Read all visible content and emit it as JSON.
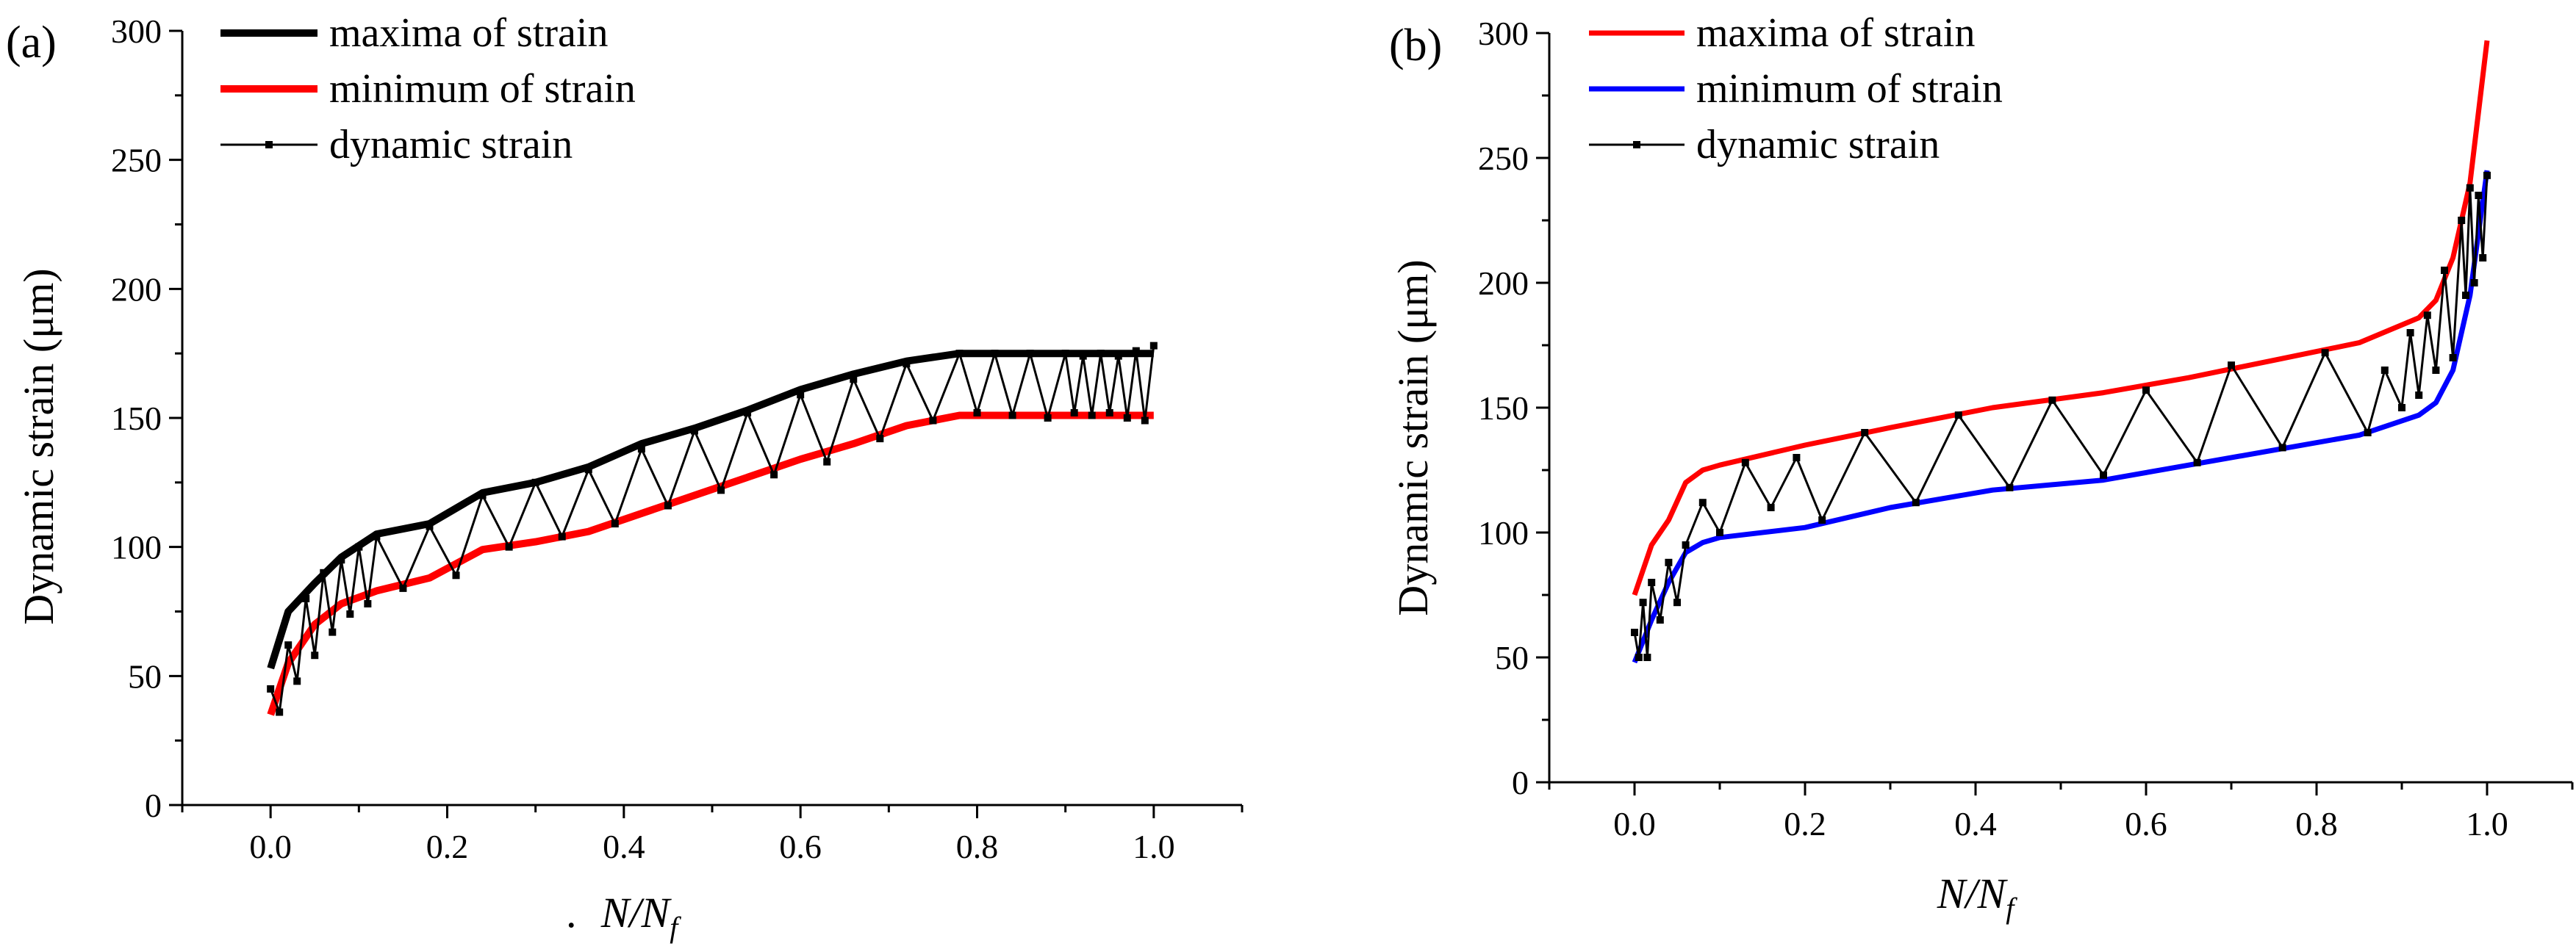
{
  "figure": {
    "note_dot": "."
  },
  "chart_data": [
    {
      "type": "line",
      "panel_label": "(a)",
      "xlabel": {
        "main": "N/N",
        "sub": "f"
      },
      "ylabel": "Dynamic strain (μm)",
      "xlim": [
        -0.1,
        1.1
      ],
      "ylim": [
        0,
        300
      ],
      "xticks": [
        0.0,
        0.2,
        0.4,
        0.6,
        0.8,
        1.0
      ],
      "xtick_labels": [
        "0.0",
        "0.2",
        "0.4",
        "0.6",
        "0.8",
        "1.0"
      ],
      "yticks": [
        0,
        50,
        100,
        150,
        200,
        250,
        300
      ],
      "ytick_labels": [
        "0",
        "50",
        "100",
        "150",
        "200",
        "250",
        "300"
      ],
      "legend_position": "top-left",
      "series": [
        {
          "name": "maxima of strain",
          "color": "#000000",
          "style": "thick-line",
          "x": [
            0.0,
            0.02,
            0.05,
            0.08,
            0.12,
            0.18,
            0.24,
            0.3,
            0.36,
            0.42,
            0.48,
            0.54,
            0.6,
            0.66,
            0.72,
            0.78,
            0.85,
            0.9,
            1.0
          ],
          "y": [
            53,
            75,
            86,
            96,
            105,
            109,
            121,
            125,
            131,
            140,
            146,
            153,
            161,
            167,
            172,
            175,
            175,
            175,
            175
          ]
        },
        {
          "name": "minimum of strain",
          "color": "#ff0000",
          "style": "thick-line",
          "x": [
            0.0,
            0.02,
            0.05,
            0.08,
            0.12,
            0.18,
            0.24,
            0.3,
            0.36,
            0.42,
            0.48,
            0.54,
            0.6,
            0.66,
            0.72,
            0.78,
            0.85,
            0.9,
            1.0
          ],
          "y": [
            35,
            55,
            70,
            78,
            83,
            88,
            99,
            102,
            106,
            113,
            120,
            127,
            134,
            140,
            147,
            151,
            151,
            151,
            151
          ]
        },
        {
          "name": "dynamic strain",
          "color": "#000000",
          "style": "thin-line-square-markers",
          "x": [
            0.0,
            0.01,
            0.02,
            0.03,
            0.04,
            0.05,
            0.06,
            0.07,
            0.08,
            0.09,
            0.1,
            0.11,
            0.12,
            0.15,
            0.18,
            0.21,
            0.24,
            0.27,
            0.3,
            0.33,
            0.36,
            0.39,
            0.42,
            0.45,
            0.48,
            0.51,
            0.54,
            0.57,
            0.6,
            0.63,
            0.66,
            0.69,
            0.72,
            0.75,
            0.78,
            0.8,
            0.82,
            0.84,
            0.86,
            0.88,
            0.9,
            0.91,
            0.92,
            0.93,
            0.94,
            0.95,
            0.96,
            0.97,
            0.98,
            0.99,
            1.0
          ],
          "y": [
            45,
            36,
            62,
            48,
            80,
            58,
            90,
            67,
            95,
            74,
            100,
            78,
            104,
            84,
            108,
            89,
            120,
            100,
            125,
            104,
            130,
            109,
            138,
            116,
            145,
            122,
            152,
            128,
            159,
            133,
            165,
            142,
            171,
            149,
            175,
            152,
            175,
            151,
            175,
            150,
            175,
            152,
            174,
            151,
            175,
            152,
            174,
            150,
            176,
            149,
            178
          ]
        }
      ]
    },
    {
      "type": "line",
      "panel_label": "(b)",
      "xlabel": {
        "main": "N/N",
        "sub": "f"
      },
      "ylabel": "Dynamic strain (μm)",
      "xlim": [
        -0.1,
        1.1
      ],
      "ylim": [
        0,
        300
      ],
      "xticks": [
        0.0,
        0.2,
        0.4,
        0.6,
        0.8,
        1.0
      ],
      "xtick_labels": [
        "0.0",
        "0.2",
        "0.4",
        "0.6",
        "0.8",
        "1.0"
      ],
      "yticks": [
        0,
        50,
        100,
        150,
        200,
        250,
        300
      ],
      "ytick_labels": [
        "0",
        "50",
        "100",
        "150",
        "200",
        "250",
        "300"
      ],
      "legend_position": "top-left",
      "series": [
        {
          "name": "maxima of strain",
          "color": "#ff0000",
          "style": "line",
          "x": [
            0.0,
            0.02,
            0.04,
            0.06,
            0.08,
            0.1,
            0.2,
            0.3,
            0.42,
            0.55,
            0.65,
            0.75,
            0.85,
            0.92,
            0.94,
            0.96,
            0.98,
            1.0
          ],
          "y": [
            75,
            95,
            105,
            120,
            125,
            127,
            135,
            142,
            150,
            156,
            162,
            169,
            176,
            186,
            193,
            210,
            240,
            297
          ]
        },
        {
          "name": "minimum of strain",
          "color": "#0000ff",
          "style": "line",
          "x": [
            0.0,
            0.02,
            0.04,
            0.06,
            0.08,
            0.1,
            0.2,
            0.3,
            0.42,
            0.55,
            0.65,
            0.75,
            0.85,
            0.92,
            0.94,
            0.96,
            0.98,
            1.0
          ],
          "y": [
            48,
            65,
            80,
            92,
            96,
            98,
            102,
            110,
            117,
            121,
            127,
            133,
            139,
            147,
            152,
            165,
            195,
            245
          ]
        },
        {
          "name": "dynamic strain",
          "color": "#000000",
          "style": "thin-line-square-markers",
          "x": [
            0.0,
            0.005,
            0.01,
            0.015,
            0.02,
            0.03,
            0.04,
            0.05,
            0.06,
            0.08,
            0.1,
            0.13,
            0.16,
            0.19,
            0.22,
            0.27,
            0.33,
            0.38,
            0.44,
            0.49,
            0.55,
            0.6,
            0.66,
            0.7,
            0.76,
            0.81,
            0.86,
            0.88,
            0.9,
            0.91,
            0.92,
            0.93,
            0.94,
            0.95,
            0.96,
            0.97,
            0.975,
            0.98,
            0.985,
            0.99,
            0.995,
            1.0
          ],
          "y": [
            60,
            50,
            72,
            50,
            80,
            65,
            88,
            72,
            95,
            112,
            100,
            128,
            110,
            130,
            105,
            140,
            112,
            147,
            118,
            153,
            123,
            157,
            128,
            167,
            134,
            172,
            140,
            165,
            150,
            180,
            155,
            187,
            165,
            205,
            170,
            225,
            195,
            238,
            200,
            235,
            210,
            243
          ]
        }
      ]
    }
  ]
}
